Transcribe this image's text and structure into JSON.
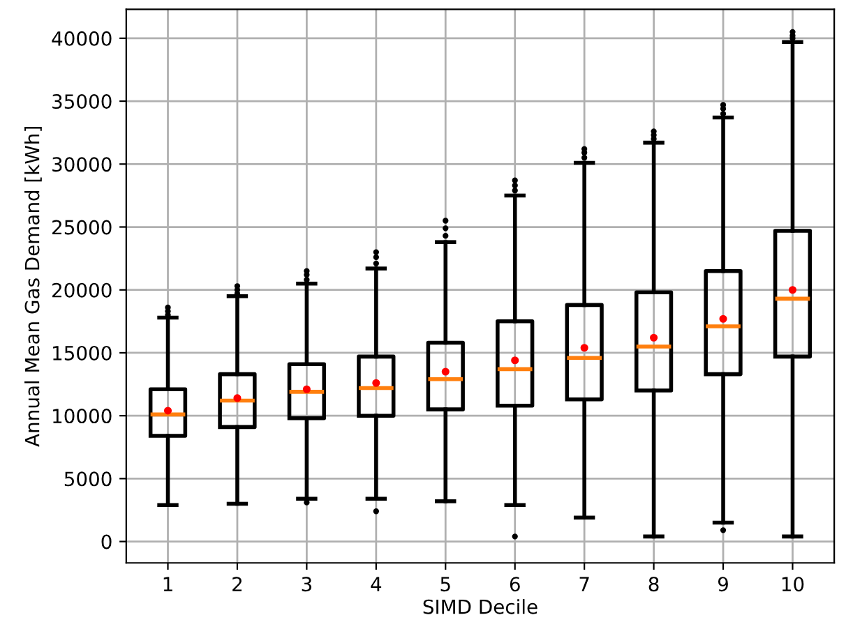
{
  "chart_data": {
    "type": "box",
    "xlabel": "SIMD Decile",
    "ylabel": "Annual Mean Gas Demand [kWh]",
    "categories": [
      "1",
      "2",
      "3",
      "4",
      "5",
      "6",
      "7",
      "8",
      "9",
      "10"
    ],
    "boxes": [
      {
        "low": 2900,
        "q1": 8400,
        "median": 10100,
        "q3": 12100,
        "high": 17800,
        "mean": 10400,
        "outliers": [
          18000,
          18300,
          18600
        ]
      },
      {
        "low": 3000,
        "q1": 9100,
        "median": 11200,
        "q3": 13300,
        "high": 19500,
        "mean": 11400,
        "outliers": [
          19700,
          20000,
          20300
        ]
      },
      {
        "low": 3400,
        "q1": 9800,
        "median": 11900,
        "q3": 14100,
        "high": 20500,
        "mean": 12100,
        "outliers": [
          3100,
          20800,
          21200,
          21500
        ]
      },
      {
        "low": 3400,
        "q1": 10000,
        "median": 12200,
        "q3": 14700,
        "high": 21700,
        "mean": 12600,
        "outliers": [
          2400,
          22100,
          22600,
          23000
        ]
      },
      {
        "low": 3200,
        "q1": 10500,
        "median": 12900,
        "q3": 15800,
        "high": 23800,
        "mean": 13500,
        "outliers": [
          24300,
          24900,
          25500
        ]
      },
      {
        "low": 2900,
        "q1": 10800,
        "median": 13700,
        "q3": 17500,
        "high": 27500,
        "mean": 14400,
        "outliers": [
          400,
          27900,
          28300,
          28700
        ]
      },
      {
        "low": 1900,
        "q1": 11300,
        "median": 14600,
        "q3": 18800,
        "high": 30100,
        "mean": 15400,
        "outliers": [
          30500,
          30900,
          31200
        ]
      },
      {
        "low": 400,
        "q1": 12000,
        "median": 15500,
        "q3": 19800,
        "high": 31700,
        "mean": 16200,
        "outliers": [
          32000,
          32300,
          32600
        ]
      },
      {
        "low": 1500,
        "q1": 13300,
        "median": 17100,
        "q3": 21500,
        "high": 33700,
        "mean": 17700,
        "outliers": [
          900,
          34000,
          34400,
          34700
        ]
      },
      {
        "low": 400,
        "q1": 14700,
        "median": 19300,
        "q3": 24700,
        "high": 39700,
        "mean": 20000,
        "outliers": [
          40000,
          40200,
          40500
        ]
      }
    ],
    "ylim": [
      -1700,
      42300
    ],
    "yticks": [
      0,
      5000,
      10000,
      15000,
      20000,
      25000,
      30000,
      35000,
      40000
    ],
    "grid": true
  }
}
